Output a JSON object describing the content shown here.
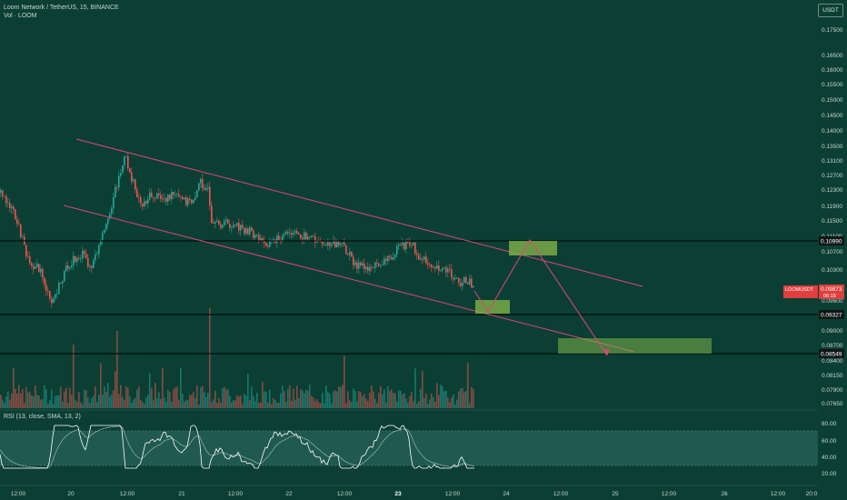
{
  "header": {
    "symbol_line": "Loom Network / TetherUS, 15, BINANCE",
    "volume_line": "Vol · LOOM"
  },
  "currency_button": "USDT",
  "rsi_header": "RSI (13, close, SMA, 13, 2)",
  "colors": {
    "background": "#0b3f33",
    "channel": "#e0457b",
    "candle_up": "#26a69a",
    "candle_down": "#ef5350",
    "zone": "#7fb24a",
    "rsi_line": "#ffffff",
    "rsi_band": "#2d6b63",
    "axis_text": "#c9d6d1"
  },
  "chart_data": {
    "type": "candlestick",
    "price_axis": {
      "ticks": [
        "0.17500",
        "0.16500",
        "0.16000",
        "0.15500",
        "0.15000",
        "0.14500",
        "0.14000",
        "0.13500",
        "0.13100",
        "0.12700",
        "0.12300",
        "0.11900",
        "0.11500",
        "0.11100",
        "0.10700",
        "0.10300",
        "0.09600",
        "0.09000",
        "0.08700",
        "0.08400",
        "0.08150",
        "0.07900",
        "0.07650"
      ]
    },
    "time_axis": {
      "ticks": [
        "12:00",
        "20",
        "12:00",
        "21",
        "12:00",
        "22",
        "12:00",
        "23",
        "12:00",
        "24",
        "12:00",
        "25",
        "12:00",
        "26",
        "12:00",
        "20:0"
      ]
    },
    "horizontal_levels": [
      {
        "label": "0.10990",
        "value": 0.1099
      },
      {
        "label": "0.09327",
        "value": 0.09327
      },
      {
        "label": "0.08549",
        "value": 0.08549
      }
    ],
    "last_price": {
      "symbol": "LOOMUSDT",
      "price": "0.09873",
      "countdown": "06:15"
    },
    "rsi_axis": [
      "80.00",
      "60.00",
      "40.00",
      "20.00"
    ],
    "rsi_band": [
      30,
      70
    ]
  }
}
